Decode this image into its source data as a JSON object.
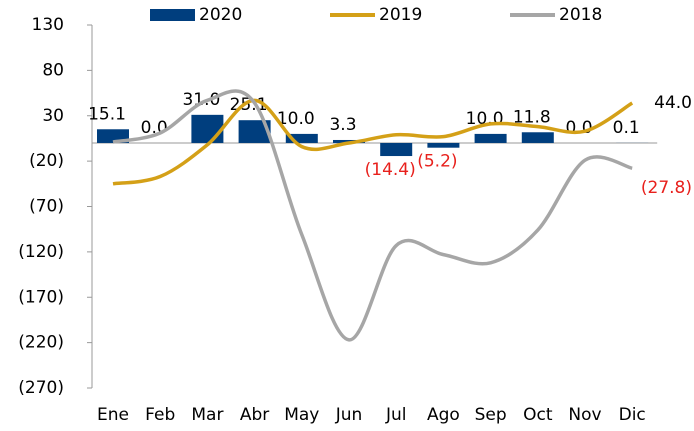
{
  "chart_data": {
    "type": "bar_line",
    "categories": [
      "Ene",
      "Feb",
      "Mar",
      "Abr",
      "May",
      "Jun",
      "Jul",
      "Ago",
      "Sep",
      "Oct",
      "Nov",
      "Dic"
    ],
    "series": [
      {
        "name": "2020",
        "type": "bar",
        "color": "#003e7e",
        "negative_label_color": "#e8201c",
        "values": [
          15.1,
          0.0,
          31.0,
          25.1,
          10.0,
          3.3,
          -14.4,
          -5.2,
          10.0,
          11.8,
          0.0,
          0.1
        ],
        "value_labels": [
          "15.1",
          "0.0",
          "31.0",
          "25.1",
          "10.0",
          "3.3",
          "(14.4)",
          "(5.2)",
          "10.0",
          "11.8",
          "0.0",
          "0.1"
        ]
      },
      {
        "name": "2019",
        "type": "line",
        "color": "#d4a017",
        "values": [
          -45,
          -37,
          -2,
          47,
          -4,
          0,
          9,
          7,
          21,
          18,
          13,
          44.0
        ],
        "value_labels": [
          null,
          null,
          null,
          null,
          null,
          null,
          null,
          null,
          null,
          null,
          null,
          "44.0"
        ]
      },
      {
        "name": "2018",
        "type": "line",
        "color": "#a6a6a6",
        "negative_label_color": "#e8201c",
        "values": [
          1,
          11,
          47,
          44,
          -101,
          -217,
          -113,
          -123,
          -132,
          -96,
          -19,
          -27.8
        ],
        "value_labels": [
          null,
          null,
          null,
          null,
          null,
          null,
          null,
          null,
          null,
          null,
          null,
          "(27.8)"
        ]
      }
    ],
    "ylim": [
      -270,
      130
    ],
    "yticks": [
      {
        "value": -270,
        "label": "(270)"
      },
      {
        "value": -220,
        "label": "(220)"
      },
      {
        "value": -170,
        "label": "(170)"
      },
      {
        "value": -120,
        "label": "(120)"
      },
      {
        "value": -70,
        "label": "(70)"
      },
      {
        "value": -20,
        "label": "(20)"
      },
      30,
      80,
      130
    ],
    "legend": "top"
  }
}
